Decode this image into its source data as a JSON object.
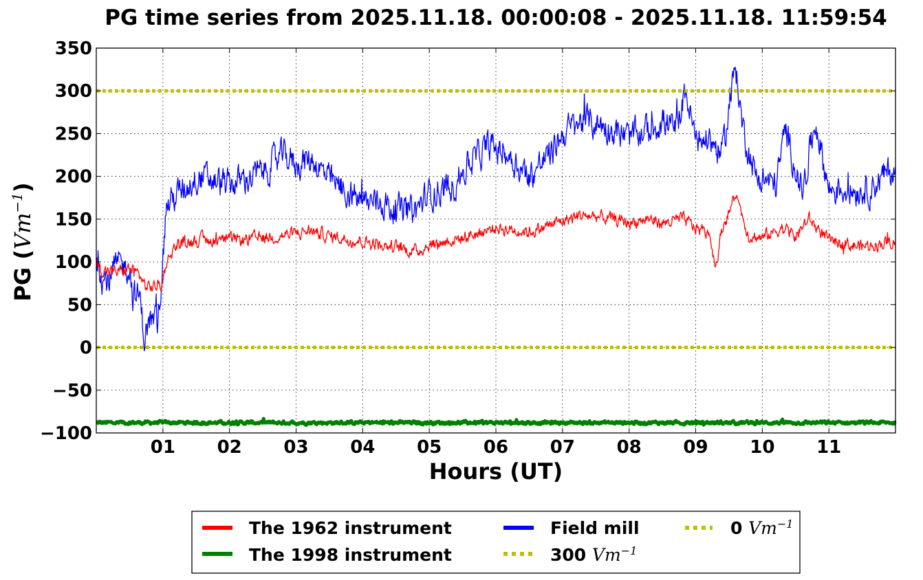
{
  "chart_data": {
    "type": "line",
    "title": "PG time series from 2025.11.18. 00:00:08 - 2025.11.18. 11:59:54",
    "xlabel": "Hours (UT)",
    "ylabel": "PG (",
    "ylabel_unit": "Vm",
    "ylabel_exp": "−1",
    "ylabel_close": ")",
    "xlim": [
      0,
      12
    ],
    "ylim": [
      -100,
      350
    ],
    "grid": true,
    "xticks": [
      {
        "value": 1,
        "label": "01"
      },
      {
        "value": 2,
        "label": "02"
      },
      {
        "value": 3,
        "label": "03"
      },
      {
        "value": 4,
        "label": "04"
      },
      {
        "value": 5,
        "label": "05"
      },
      {
        "value": 6,
        "label": "06"
      },
      {
        "value": 7,
        "label": "07"
      },
      {
        "value": 8,
        "label": "08"
      },
      {
        "value": 9,
        "label": "09"
      },
      {
        "value": 10,
        "label": "10"
      },
      {
        "value": 11,
        "label": "11"
      }
    ],
    "yticks": [
      {
        "value": 350,
        "label": "350"
      },
      {
        "value": 300,
        "label": "300"
      },
      {
        "value": 250,
        "label": "250"
      },
      {
        "value": 200,
        "label": "200"
      },
      {
        "value": 150,
        "label": "150"
      },
      {
        "value": 100,
        "label": "100"
      },
      {
        "value": 50,
        "label": "50"
      },
      {
        "value": 0,
        "label": "0"
      },
      {
        "value": -50,
        "label": "−50"
      },
      {
        "value": -100,
        "label": "−100"
      }
    ],
    "legend_placement": "bottom-center-below",
    "series": [
      {
        "name": "The 1962 instrument",
        "color": "#ff0000",
        "noise": 6,
        "x": [
          0,
          0.1,
          0.3,
          0.5,
          0.65,
          0.75,
          0.9,
          1.0,
          1.05,
          1.2,
          1.5,
          2.0,
          2.5,
          3.0,
          3.2,
          3.5,
          4.0,
          4.5,
          4.8,
          5.0,
          5.5,
          6.0,
          6.5,
          7.0,
          7.3,
          7.6,
          8.0,
          8.3,
          8.5,
          8.8,
          9.0,
          9.2,
          9.3,
          9.4,
          9.6,
          9.8,
          10.0,
          10.3,
          10.5,
          10.7,
          11.0,
          11.3,
          11.5,
          11.8,
          12.0
        ],
        "y": [
          100,
          90,
          88,
          92,
          85,
          70,
          72,
          75,
          100,
          120,
          126,
          125,
          128,
          133,
          137,
          130,
          124,
          117,
          112,
          120,
          128,
          140,
          135,
          148,
          155,
          152,
          146,
          150,
          145,
          150,
          140,
          135,
          95,
          140,
          178,
          130,
          128,
          140,
          130,
          150,
          125,
          120,
          118,
          122,
          125
        ]
      },
      {
        "name": "Field mill",
        "color": "#0000ff",
        "noise": 14,
        "x": [
          0,
          0.1,
          0.2,
          0.3,
          0.5,
          0.55,
          0.65,
          0.72,
          0.8,
          0.92,
          1.0,
          1.05,
          1.1,
          1.5,
          2.0,
          2.5,
          2.8,
          3.0,
          3.25,
          3.5,
          4.0,
          4.3,
          4.5,
          4.8,
          5.0,
          5.3,
          5.6,
          5.9,
          6.2,
          6.5,
          6.8,
          7.0,
          7.3,
          7.6,
          8.0,
          8.3,
          8.5,
          8.7,
          8.85,
          9.0,
          9.2,
          9.4,
          9.6,
          9.7,
          9.9,
          10.2,
          10.35,
          10.6,
          10.8,
          11.0,
          11.3,
          11.6,
          11.9,
          12.0
        ],
        "y": [
          110,
          80,
          78,
          95,
          95,
          60,
          60,
          12,
          30,
          30,
          100,
          165,
          170,
          200,
          190,
          205,
          225,
          215,
          220,
          195,
          170,
          170,
          160,
          160,
          180,
          185,
          215,
          235,
          225,
          200,
          225,
          250,
          265,
          260,
          245,
          255,
          265,
          255,
          300,
          240,
          245,
          225,
          330,
          260,
          200,
          190,
          255,
          180,
          265,
          185,
          185,
          185,
          205,
          205
        ]
      },
      {
        "name": "The 1998 instrument",
        "color": "#008000",
        "noise": 1.5,
        "x": [
          0,
          12
        ],
        "y": [
          -88,
          -88
        ]
      }
    ],
    "reference_lines": [
      {
        "name": "300",
        "value": 300,
        "color": "#bfbf00"
      },
      {
        "name": "0",
        "value": 0,
        "color": "#bfbf00"
      }
    ],
    "legend": {
      "items": [
        {
          "label": "The 1962 instrument",
          "math": "",
          "exp": "",
          "color": "#ff0000",
          "style": "solid"
        },
        {
          "label": "The 1998 instrument",
          "math": "",
          "exp": "",
          "color": "#008000",
          "style": "solid"
        },
        {
          "label": "Field mill",
          "math": "",
          "exp": "",
          "color": "#0000ff",
          "style": "solid"
        },
        {
          "label": "300 ",
          "math": "Vm",
          "exp": "−1",
          "color": "#bfbf00",
          "style": "dotted"
        },
        {
          "label": "0 ",
          "math": "Vm",
          "exp": "−1",
          "color": "#bfbf00",
          "style": "dotted"
        }
      ]
    }
  }
}
